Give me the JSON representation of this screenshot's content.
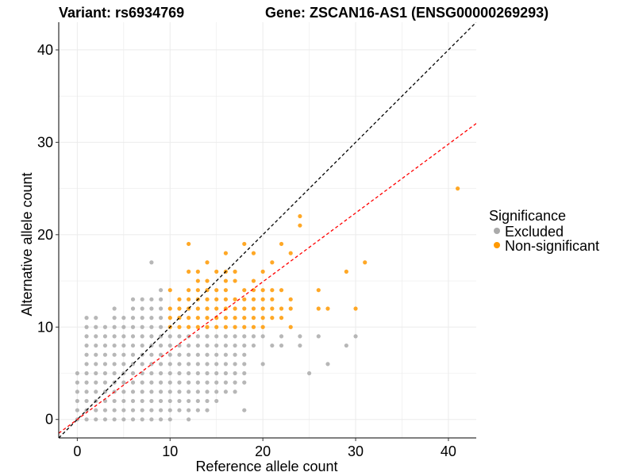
{
  "chart_data": {
    "type": "scatter",
    "title_left": "Variant: rs6934769",
    "title_right": "Gene: ZSCAN16-AS1 (ENSG00000269293)",
    "xlabel": "Reference allele count",
    "ylabel": "Alternative allele count",
    "xlim": [
      -2,
      43
    ],
    "ylim": [
      -2,
      43
    ],
    "xticks": [
      0,
      10,
      20,
      30,
      40
    ],
    "yticks": [
      0,
      10,
      20,
      30,
      40
    ],
    "grid": true,
    "colors": {
      "excluded": "#aaaaaa",
      "non_significant": "#ff9900",
      "identity_line": "#000000",
      "fit_line": "#ff0000",
      "grid": "#ebebeb"
    },
    "identity_line": {
      "slope": 1.0,
      "intercept": 0
    },
    "fit_line": {
      "slope": 0.745,
      "intercept": 0
    },
    "legend": {
      "title": "Significance",
      "position": "right",
      "entries": [
        "Excluded",
        "Non-significant"
      ]
    },
    "series": [
      {
        "name": "Excluded",
        "color": "#aaaaaa",
        "points": [
          [
            0,
            0
          ],
          [
            0,
            1
          ],
          [
            0,
            2
          ],
          [
            0,
            3
          ],
          [
            0,
            4
          ],
          [
            0,
            5
          ],
          [
            1,
            0
          ],
          [
            1,
            1
          ],
          [
            1,
            2
          ],
          [
            1,
            3
          ],
          [
            1,
            4
          ],
          [
            1,
            5
          ],
          [
            1,
            6
          ],
          [
            1,
            7
          ],
          [
            1,
            8
          ],
          [
            1,
            9
          ],
          [
            1,
            10
          ],
          [
            1,
            11
          ],
          [
            2,
            0
          ],
          [
            2,
            1
          ],
          [
            2,
            2
          ],
          [
            2,
            3
          ],
          [
            2,
            4
          ],
          [
            2,
            5
          ],
          [
            2,
            6
          ],
          [
            2,
            7
          ],
          [
            2,
            8
          ],
          [
            2,
            9
          ],
          [
            2,
            10
          ],
          [
            2,
            11
          ],
          [
            3,
            0
          ],
          [
            3,
            1
          ],
          [
            3,
            2
          ],
          [
            3,
            3
          ],
          [
            3,
            4
          ],
          [
            3,
            5
          ],
          [
            3,
            6
          ],
          [
            3,
            7
          ],
          [
            3,
            8
          ],
          [
            3,
            9
          ],
          [
            3,
            10
          ],
          [
            4,
            0
          ],
          [
            4,
            1
          ],
          [
            4,
            2
          ],
          [
            4,
            3
          ],
          [
            4,
            4
          ],
          [
            4,
            5
          ],
          [
            4,
            6
          ],
          [
            4,
            7
          ],
          [
            4,
            8
          ],
          [
            4,
            9
          ],
          [
            4,
            10
          ],
          [
            4,
            11
          ],
          [
            4,
            12
          ],
          [
            5,
            0
          ],
          [
            5,
            1
          ],
          [
            5,
            2
          ],
          [
            5,
            3
          ],
          [
            5,
            4
          ],
          [
            5,
            5
          ],
          [
            5,
            6
          ],
          [
            5,
            7
          ],
          [
            5,
            8
          ],
          [
            5,
            9
          ],
          [
            5,
            10
          ],
          [
            5,
            11
          ],
          [
            6,
            0
          ],
          [
            6,
            1
          ],
          [
            6,
            2
          ],
          [
            6,
            3
          ],
          [
            6,
            4
          ],
          [
            6,
            5
          ],
          [
            6,
            6
          ],
          [
            6,
            7
          ],
          [
            6,
            8
          ],
          [
            6,
            9
          ],
          [
            6,
            10
          ],
          [
            6,
            11
          ],
          [
            6,
            12
          ],
          [
            6,
            13
          ],
          [
            7,
            0
          ],
          [
            7,
            1
          ],
          [
            7,
            2
          ],
          [
            7,
            3
          ],
          [
            7,
            4
          ],
          [
            7,
            5
          ],
          [
            7,
            6
          ],
          [
            7,
            7
          ],
          [
            7,
            8
          ],
          [
            7,
            9
          ],
          [
            7,
            10
          ],
          [
            7,
            11
          ],
          [
            7,
            12
          ],
          [
            7,
            13
          ],
          [
            8,
            0
          ],
          [
            8,
            1
          ],
          [
            8,
            2
          ],
          [
            8,
            3
          ],
          [
            8,
            4
          ],
          [
            8,
            5
          ],
          [
            8,
            6
          ],
          [
            8,
            7
          ],
          [
            8,
            8
          ],
          [
            8,
            9
          ],
          [
            8,
            10
          ],
          [
            8,
            11
          ],
          [
            8,
            12
          ],
          [
            8,
            13
          ],
          [
            8,
            17
          ],
          [
            9,
            0
          ],
          [
            9,
            1
          ],
          [
            9,
            2
          ],
          [
            9,
            3
          ],
          [
            9,
            4
          ],
          [
            9,
            5
          ],
          [
            9,
            6
          ],
          [
            9,
            7
          ],
          [
            9,
            8
          ],
          [
            9,
            9
          ],
          [
            9,
            10
          ],
          [
            9,
            11
          ],
          [
            9,
            12
          ],
          [
            9,
            13
          ],
          [
            9,
            14
          ],
          [
            10,
            0
          ],
          [
            10,
            1
          ],
          [
            10,
            2
          ],
          [
            10,
            3
          ],
          [
            10,
            4
          ],
          [
            10,
            5
          ],
          [
            10,
            6
          ],
          [
            10,
            7
          ],
          [
            10,
            8
          ],
          [
            10,
            9
          ],
          [
            11,
            1
          ],
          [
            11,
            2
          ],
          [
            11,
            3
          ],
          [
            11,
            4
          ],
          [
            11,
            5
          ],
          [
            11,
            6
          ],
          [
            11,
            7
          ],
          [
            11,
            8
          ],
          [
            11,
            9
          ],
          [
            12,
            0
          ],
          [
            12,
            1
          ],
          [
            12,
            2
          ],
          [
            12,
            3
          ],
          [
            12,
            4
          ],
          [
            12,
            5
          ],
          [
            12,
            6
          ],
          [
            12,
            7
          ],
          [
            12,
            8
          ],
          [
            12,
            9
          ],
          [
            13,
            1
          ],
          [
            13,
            2
          ],
          [
            13,
            3
          ],
          [
            13,
            4
          ],
          [
            13,
            5
          ],
          [
            13,
            6
          ],
          [
            13,
            7
          ],
          [
            13,
            8
          ],
          [
            13,
            9
          ],
          [
            14,
            1
          ],
          [
            14,
            2
          ],
          [
            14,
            3
          ],
          [
            14,
            4
          ],
          [
            14,
            5
          ],
          [
            14,
            6
          ],
          [
            14,
            7
          ],
          [
            14,
            8
          ],
          [
            14,
            9
          ],
          [
            15,
            2
          ],
          [
            15,
            3
          ],
          [
            15,
            4
          ],
          [
            15,
            5
          ],
          [
            15,
            6
          ],
          [
            15,
            7
          ],
          [
            15,
            8
          ],
          [
            15,
            9
          ],
          [
            16,
            3
          ],
          [
            16,
            4
          ],
          [
            16,
            5
          ],
          [
            16,
            6
          ],
          [
            16,
            7
          ],
          [
            16,
            8
          ],
          [
            16,
            9
          ],
          [
            17,
            3
          ],
          [
            17,
            4
          ],
          [
            17,
            5
          ],
          [
            17,
            6
          ],
          [
            17,
            7
          ],
          [
            17,
            8
          ],
          [
            17,
            9
          ],
          [
            18,
            1
          ],
          [
            18,
            4
          ],
          [
            18,
            5
          ],
          [
            18,
            6
          ],
          [
            18,
            7
          ],
          [
            18,
            8
          ],
          [
            18,
            9
          ],
          [
            19,
            8
          ],
          [
            19,
            9
          ],
          [
            20,
            6
          ],
          [
            20,
            9
          ],
          [
            21,
            8
          ],
          [
            22,
            8
          ],
          [
            22,
            9
          ],
          [
            24,
            9
          ],
          [
            24,
            8
          ],
          [
            25,
            5
          ],
          [
            26,
            9
          ],
          [
            27,
            6
          ],
          [
            29,
            8
          ],
          [
            30,
            9
          ]
        ]
      },
      {
        "name": "Non-significant",
        "color": "#ff9900",
        "points": [
          [
            10,
            10
          ],
          [
            10,
            11
          ],
          [
            10,
            12
          ],
          [
            10,
            14
          ],
          [
            11,
            10
          ],
          [
            11,
            11
          ],
          [
            11,
            12
          ],
          [
            11,
            13
          ],
          [
            12,
            10
          ],
          [
            12,
            11
          ],
          [
            12,
            12
          ],
          [
            12,
            13
          ],
          [
            12,
            14
          ],
          [
            12,
            16
          ],
          [
            12,
            19
          ],
          [
            13,
            10
          ],
          [
            13,
            11
          ],
          [
            13,
            12
          ],
          [
            13,
            13
          ],
          [
            13,
            14
          ],
          [
            13,
            15
          ],
          [
            13,
            16
          ],
          [
            14,
            10
          ],
          [
            14,
            11
          ],
          [
            14,
            12
          ],
          [
            14,
            13
          ],
          [
            14,
            14
          ],
          [
            14,
            15
          ],
          [
            14,
            17
          ],
          [
            15,
            10
          ],
          [
            15,
            11
          ],
          [
            15,
            12
          ],
          [
            15,
            13
          ],
          [
            15,
            14
          ],
          [
            15,
            16
          ],
          [
            16,
            10
          ],
          [
            16,
            11
          ],
          [
            16,
            12
          ],
          [
            16,
            13
          ],
          [
            16,
            14
          ],
          [
            16,
            15
          ],
          [
            16,
            16
          ],
          [
            16,
            18
          ],
          [
            17,
            10
          ],
          [
            17,
            11
          ],
          [
            17,
            12
          ],
          [
            17,
            13
          ],
          [
            17,
            15
          ],
          [
            17,
            16
          ],
          [
            18,
            10
          ],
          [
            18,
            11
          ],
          [
            18,
            12
          ],
          [
            18,
            13
          ],
          [
            18,
            14
          ],
          [
            18,
            19
          ],
          [
            19,
            10
          ],
          [
            19,
            11
          ],
          [
            19,
            12
          ],
          [
            19,
            13
          ],
          [
            19,
            14
          ],
          [
            19,
            15
          ],
          [
            19,
            18
          ],
          [
            20,
            10
          ],
          [
            20,
            11
          ],
          [
            20,
            12
          ],
          [
            20,
            13
          ],
          [
            20,
            14
          ],
          [
            20,
            16
          ],
          [
            21,
            11
          ],
          [
            21,
            12
          ],
          [
            21,
            13
          ],
          [
            21,
            14
          ],
          [
            21,
            17
          ],
          [
            22,
            11
          ],
          [
            22,
            12
          ],
          [
            22,
            14
          ],
          [
            22,
            19
          ],
          [
            23,
            10
          ],
          [
            23,
            12
          ],
          [
            23,
            13
          ],
          [
            23,
            18
          ],
          [
            24,
            22
          ],
          [
            24,
            21
          ],
          [
            26,
            12
          ],
          [
            26,
            14
          ],
          [
            27,
            12
          ],
          [
            29,
            16
          ],
          [
            30,
            12
          ],
          [
            31,
            17
          ],
          [
            41,
            25
          ]
        ]
      }
    ]
  }
}
